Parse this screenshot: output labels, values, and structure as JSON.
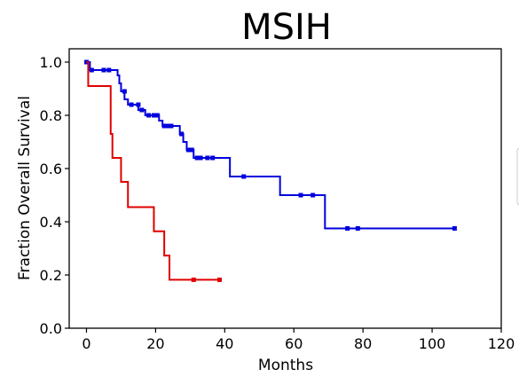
{
  "chart_data": {
    "type": "line",
    "title": "MSIH",
    "xlabel": "Months",
    "ylabel": "Fraction Overall Survival",
    "xlim": [
      -5,
      120
    ],
    "ylim": [
      0,
      1.05
    ],
    "xticks": [
      "0",
      "20",
      "40",
      "60",
      "80",
      "100",
      "120"
    ],
    "yticks": [
      "0.0",
      "0.2",
      "0.4",
      "0.6",
      "0.8",
      "1.0"
    ],
    "grid": false,
    "legend": "none",
    "series": [
      {
        "color": "#0000dd",
        "step_points": [
          [
            0,
            1.0
          ],
          [
            1,
            0.97
          ],
          [
            9,
            0.95
          ],
          [
            9.5,
            0.92
          ],
          [
            10,
            0.89
          ],
          [
            11,
            0.86
          ],
          [
            12,
            0.84
          ],
          [
            15,
            0.82
          ],
          [
            17,
            0.8
          ],
          [
            21,
            0.78
          ],
          [
            22,
            0.76
          ],
          [
            27,
            0.73
          ],
          [
            28,
            0.7
          ],
          [
            29,
            0.67
          ],
          [
            31,
            0.64
          ],
          [
            41.5,
            0.57
          ],
          [
            56,
            0.5
          ],
          [
            69,
            0.375
          ],
          [
            106.5,
            0.375
          ]
        ],
        "censor_points": [
          [
            0,
            1.0
          ],
          [
            1.5,
            0.97
          ],
          [
            5,
            0.97
          ],
          [
            6.5,
            0.97
          ],
          [
            11,
            0.89
          ],
          [
            13,
            0.84
          ],
          [
            15,
            0.84
          ],
          [
            16,
            0.82
          ],
          [
            18,
            0.8
          ],
          [
            19.5,
            0.8
          ],
          [
            20.5,
            0.8
          ],
          [
            22.5,
            0.76
          ],
          [
            23.5,
            0.76
          ],
          [
            24.5,
            0.76
          ],
          [
            27.5,
            0.73
          ],
          [
            29.5,
            0.67
          ],
          [
            30.5,
            0.67
          ],
          [
            32,
            0.64
          ],
          [
            33,
            0.64
          ],
          [
            35,
            0.64
          ],
          [
            36.5,
            0.64
          ],
          [
            45.5,
            0.57
          ],
          [
            62,
            0.5
          ],
          [
            65.5,
            0.5
          ],
          [
            75.5,
            0.375
          ],
          [
            78.5,
            0.375
          ],
          [
            106.5,
            0.375
          ]
        ]
      },
      {
        "color": "#e00000",
        "step_points": [
          [
            0,
            1.0
          ],
          [
            0.5,
            0.91
          ],
          [
            7,
            0.73
          ],
          [
            7.5,
            0.64
          ],
          [
            10,
            0.55
          ],
          [
            12,
            0.455
          ],
          [
            19.5,
            0.364
          ],
          [
            22.5,
            0.273
          ],
          [
            24,
            0.182
          ],
          [
            39,
            0.182
          ]
        ],
        "censor_points": [
          [
            31,
            0.182
          ],
          [
            38.5,
            0.182
          ]
        ]
      }
    ]
  }
}
